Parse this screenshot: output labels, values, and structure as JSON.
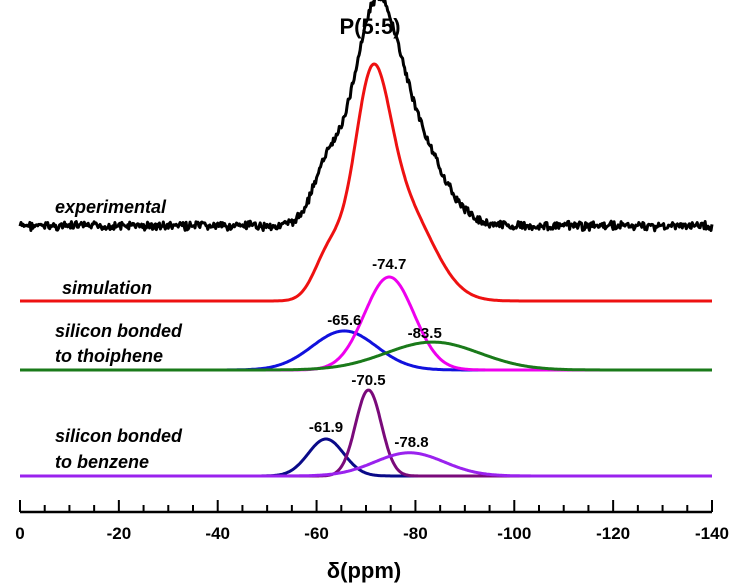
{
  "chart_data": {
    "type": "line",
    "title": "P(5:5)",
    "xlabel": "δ(ppm)",
    "xlim": [
      0,
      -140
    ],
    "x_ticks": [
      "0",
      "-20",
      "-40",
      "-60",
      "-80",
      "-100",
      "-120",
      "-140"
    ],
    "grid": false,
    "legend": "none",
    "annotations": {
      "experimental": "experimental",
      "simulation": "simulation",
      "thiophene_line1": "silicon bonded",
      "thiophene_line2": "to thoiphene",
      "benzene_line1": "silicon bonded",
      "benzene_line2": "to benzene"
    },
    "series": [
      {
        "group": "experimental",
        "color": "#000000",
        "peaks": [
          {
            "center": -71.5,
            "height": 1.0,
            "width": 4.5
          },
          {
            "center": -79.0,
            "height": 0.5,
            "width": 6.0
          },
          {
            "center": -62.0,
            "height": 0.28,
            "width": 3.0
          }
        ]
      },
      {
        "group": "simulation",
        "color": "#ee1111",
        "peaks": [
          {
            "center": -71.0,
            "height": 1.0,
            "width": 3.6
          },
          {
            "center": -77.5,
            "height": 0.52,
            "width": 6.0
          },
          {
            "center": -62.5,
            "height": 0.25,
            "width": 3.0
          }
        ]
      },
      {
        "group": "thiophene",
        "color": "#1111dd",
        "label": "-65.6",
        "peaks": [
          {
            "center": -65.6,
            "height": 0.42,
            "width": 6.5
          }
        ]
      },
      {
        "group": "thiophene",
        "color": "#ee00ee",
        "label": "-74.7",
        "peaks": [
          {
            "center": -74.7,
            "height": 1.0,
            "width": 5.0
          }
        ]
      },
      {
        "group": "thiophene",
        "color": "#1a7a1a",
        "label": "-83.5",
        "peaks": [
          {
            "center": -83.5,
            "height": 0.3,
            "width": 9.5
          }
        ]
      },
      {
        "group": "benzene",
        "color": "#0a0a88",
        "label": "-61.9",
        "peaks": [
          {
            "center": -61.9,
            "height": 0.43,
            "width": 3.6
          }
        ]
      },
      {
        "group": "benzene",
        "color": "#7a0a7a",
        "label": "-70.5",
        "peaks": [
          {
            "center": -70.5,
            "height": 1.0,
            "width": 2.6
          }
        ]
      },
      {
        "group": "benzene",
        "color": "#9a22ee",
        "label": "-78.8",
        "peaks": [
          {
            "center": -78.8,
            "height": 0.27,
            "width": 7.0
          }
        ]
      }
    ]
  }
}
